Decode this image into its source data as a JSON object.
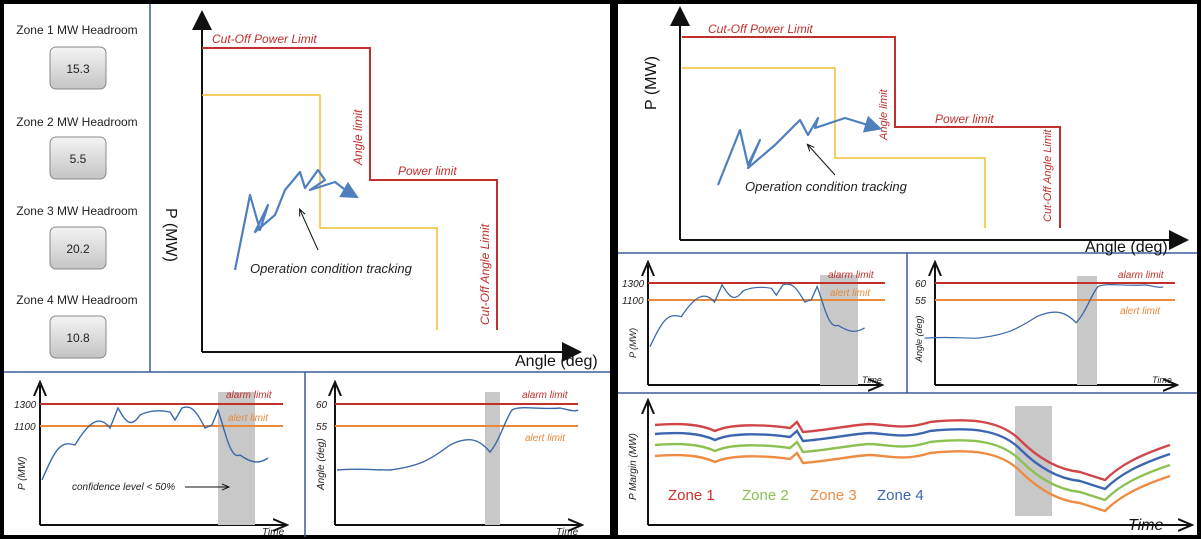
{
  "left": {
    "headroom": [
      {
        "label": "Zone 1 MW Headroom",
        "value": "15.3"
      },
      {
        "label": "Zone 2 MW Headroom",
        "value": "5.5"
      },
      {
        "label": "Zone 3 MW Headroom",
        "value": "20.2"
      },
      {
        "label": "Zone 4 MW Headroom",
        "value": "10.8"
      }
    ],
    "diagram": {
      "y_label": "P (MW)",
      "x_label": "Angle (deg)",
      "cutoff_power_limit": "Cut-Off Power Limit",
      "angle_limit": "Angle limit",
      "power_limit": "Power limit",
      "cutoff_angle_limit": "Cut-Off Angle Limit",
      "tracking": "Operation condition tracking"
    },
    "power_chart": {
      "y_label": "P (MW)",
      "x_label": "Time",
      "ticks": [
        "1300",
        "1100"
      ],
      "alarm": "alarm limit",
      "alert": "alert limit",
      "note": "confidence level < 50%"
    },
    "angle_chart": {
      "y_label": "Angle (deg)",
      "x_label": "Time",
      "ticks": [
        "60",
        "55"
      ],
      "alarm": "alarm limit",
      "alert": "alert limit"
    }
  },
  "right": {
    "diagram": {
      "y_label": "P (MW)",
      "x_label": "Angle (deg)",
      "cutoff_power_limit": "Cut-Off Power Limit",
      "angle_limit": "Angle limit",
      "power_limit": "Power limit",
      "cutoff_angle_limit": "Cut-Off Angle Limit",
      "tracking": "Operation condition tracking"
    },
    "power_chart": {
      "y_label": "P (MW)",
      "x_label": "Time",
      "ticks": [
        "1300",
        "1100"
      ],
      "alarm": "alarm limit",
      "alert": "alert limit"
    },
    "angle_chart": {
      "y_label": "Angle (deg)",
      "x_label": "Time",
      "ticks": [
        "60",
        "55"
      ],
      "alarm": "alarm limit",
      "alert": "alert limit"
    },
    "margin_chart": {
      "y_label": "P Margin (MW)",
      "x_label": "Time",
      "zones": [
        "Zone 1",
        "Zone 2",
        "Zone 3",
        "Zone 4"
      ]
    }
  }
}
